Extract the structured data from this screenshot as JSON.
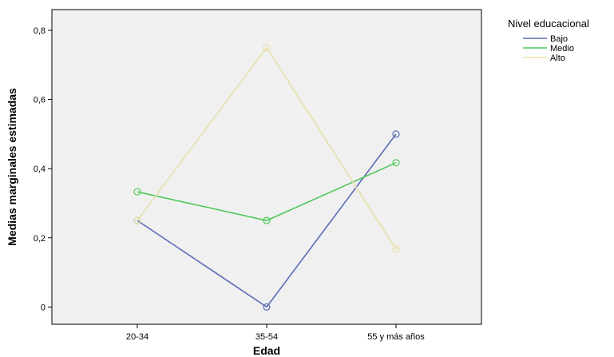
{
  "chart_data": {
    "type": "line",
    "categories": [
      "20-34",
      "35-54",
      "55 y más años"
    ],
    "series": [
      {
        "name": "Bajo",
        "color": "#5b6bb5",
        "values": [
          0.25,
          0.0,
          0.5
        ]
      },
      {
        "name": "Medio",
        "color": "#4fc85a",
        "values": [
          0.333,
          0.25,
          0.417
        ]
      },
      {
        "name": "Alto",
        "color": "#e8e0a8",
        "values": [
          0.25,
          0.75,
          0.167
        ]
      }
    ],
    "xlabel": "Edad",
    "ylabel": "Medias marginales estimadas",
    "ylim": [
      -0.05,
      0.86
    ],
    "yticks": [
      0,
      0.2,
      0.4,
      0.6,
      0.8
    ],
    "ytick_labels": [
      "0",
      "0,2",
      "0,4",
      "0,6",
      "0,8"
    ],
    "legend_title": "Nivel educacional",
    "legend_position": "top-right",
    "plot_background": "#f0f0f0",
    "grid": false,
    "marker": "open-circle"
  }
}
